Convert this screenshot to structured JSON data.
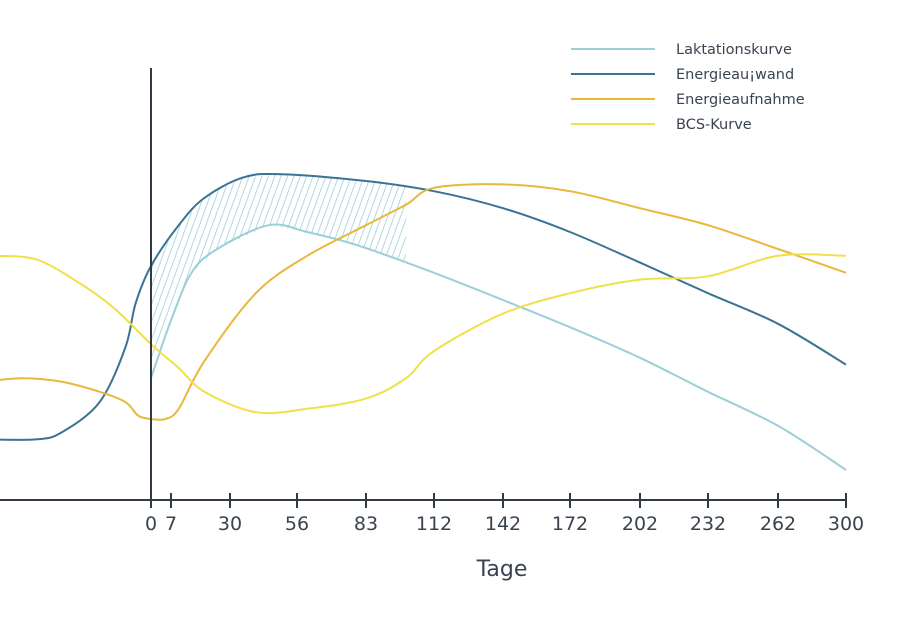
{
  "chart_data": {
    "type": "line",
    "xlabel": "Tage",
    "ylabel": "",
    "x_ticks": [
      "0",
      "7",
      "30",
      "56",
      "83",
      "112",
      "142",
      "172",
      "202",
      "232",
      "262",
      "300"
    ],
    "x_tick_positions": [
      0,
      7,
      30,
      56,
      83,
      112,
      142,
      172,
      202,
      232,
      262,
      300
    ],
    "xlim": [
      -65,
      300
    ],
    "ylim": [
      0,
      100
    ],
    "grid": false,
    "legend_position": "top-right",
    "shaded_region": {
      "between": [
        "Energieau¡wand",
        "Laktationskurve"
      ],
      "x_range": [
        0,
        100
      ],
      "pattern": "diagonal-hatch",
      "color": "#9ccfd9"
    },
    "series": [
      {
        "name": "Laktationskurve",
        "color": "#9ccfd9",
        "points": [
          [
            0,
            27
          ],
          [
            7,
            44
          ],
          [
            15,
            58
          ],
          [
            25,
            65
          ],
          [
            45,
            72
          ],
          [
            60,
            70
          ],
          [
            80,
            66
          ],
          [
            112,
            58
          ],
          [
            142,
            50
          ],
          [
            172,
            42
          ],
          [
            202,
            33
          ],
          [
            232,
            23
          ],
          [
            262,
            13
          ],
          [
            300,
            0
          ]
        ]
      },
      {
        "name": "Energieau¡wand",
        "color": "#3a7393",
        "points": [
          [
            -65,
            9
          ],
          [
            -45,
            9
          ],
          [
            -35,
            11
          ],
          [
            -20,
            20
          ],
          [
            -10,
            36
          ],
          [
            -6,
            49
          ],
          [
            0,
            60
          ],
          [
            10,
            72
          ],
          [
            20,
            80
          ],
          [
            35,
            86
          ],
          [
            50,
            87
          ],
          [
            83,
            85
          ],
          [
            112,
            82
          ],
          [
            142,
            77
          ],
          [
            172,
            70
          ],
          [
            202,
            61
          ],
          [
            232,
            52
          ],
          [
            262,
            43
          ],
          [
            300,
            31
          ]
        ]
      },
      {
        "name": "Energieaufnahme",
        "color": "#e8b83a",
        "points": [
          [
            -65,
            26
          ],
          [
            -50,
            27
          ],
          [
            -35,
            26
          ],
          [
            -20,
            23
          ],
          [
            -10,
            20
          ],
          [
            -5,
            16
          ],
          [
            0,
            15
          ],
          [
            5,
            15
          ],
          [
            10,
            18
          ],
          [
            20,
            32
          ],
          [
            40,
            52
          ],
          [
            60,
            63
          ],
          [
            83,
            72
          ],
          [
            100,
            78
          ],
          [
            112,
            83
          ],
          [
            142,
            84
          ],
          [
            172,
            82
          ],
          [
            202,
            77
          ],
          [
            232,
            72
          ],
          [
            262,
            65
          ],
          [
            300,
            58
          ]
        ]
      },
      {
        "name": "BCS-Kurve",
        "color": "#f0e04a",
        "points": [
          [
            -60,
            63
          ],
          [
            -45,
            62
          ],
          [
            -30,
            56
          ],
          [
            -15,
            48
          ],
          [
            0,
            37
          ],
          [
            10,
            30
          ],
          [
            20,
            23
          ],
          [
            40,
            17
          ],
          [
            60,
            18
          ],
          [
            83,
            21
          ],
          [
            100,
            27
          ],
          [
            112,
            35
          ],
          [
            142,
            46
          ],
          [
            172,
            52
          ],
          [
            202,
            56
          ],
          [
            232,
            57
          ],
          [
            262,
            63
          ],
          [
            300,
            63
          ]
        ]
      }
    ]
  }
}
